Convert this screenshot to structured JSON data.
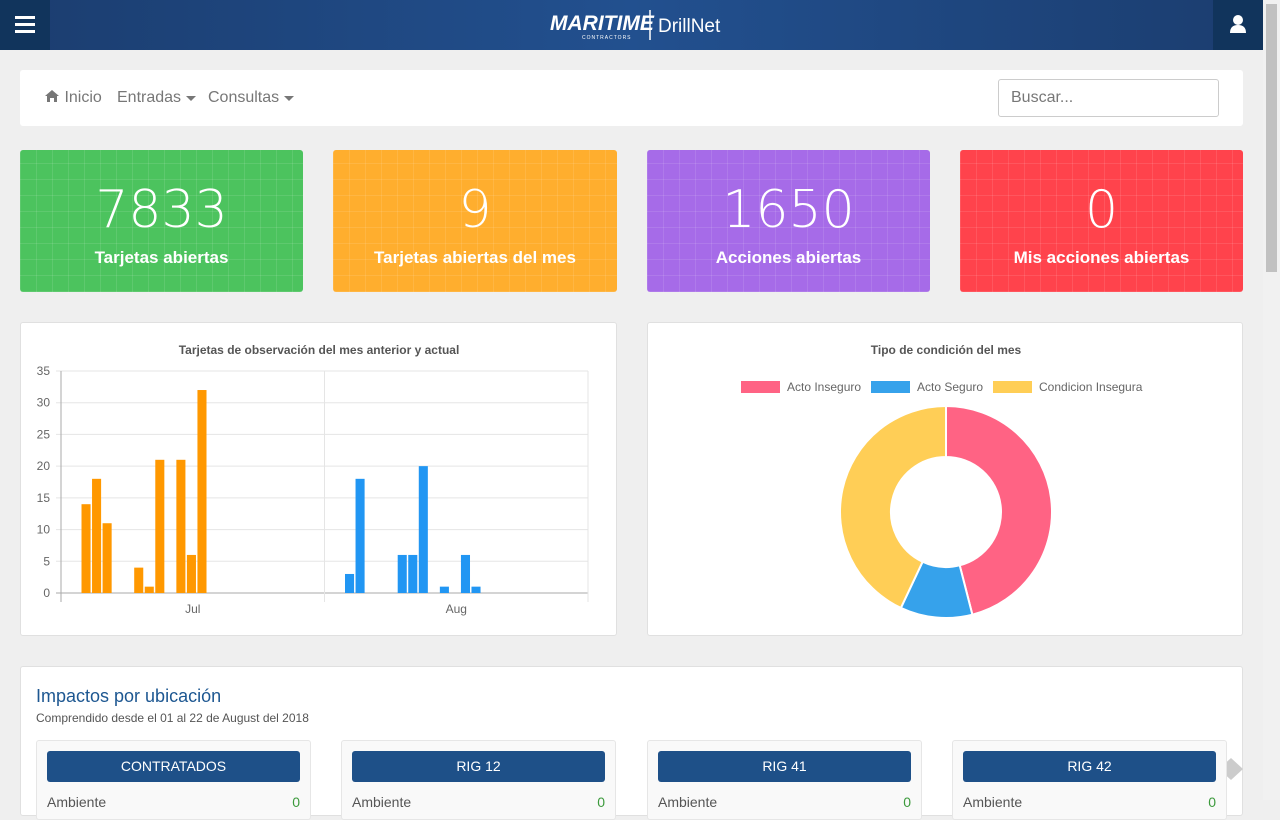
{
  "header": {
    "brand": "MARITIME",
    "brand_sub": "CONTRACTORS",
    "product": "DrillNet"
  },
  "nav": {
    "items": [
      "Inicio",
      "Entradas",
      "Consultas"
    ],
    "search_placeholder": "Buscar..."
  },
  "stats": [
    {
      "value": 7833,
      "label": "Tarjetas abiertas",
      "color": "#4cc35e"
    },
    {
      "value": 9,
      "label": "Tarjetas abiertas del mes",
      "color": "#ffae2e"
    },
    {
      "value": 1650,
      "label": "Acciones abiertas",
      "color": "#a66be8"
    },
    {
      "value": 0,
      "label": "Mis acciones abiertas",
      "color": "#ff434c"
    }
  ],
  "chart_data": [
    {
      "type": "bar",
      "title": "Tarjetas de observación del mes anterior y actual",
      "categories": [
        "Jul",
        "Aug"
      ],
      "category_colors": [
        "#ff9800",
        "#2196f3"
      ],
      "series": [
        {
          "values": [
            14,
            3
          ]
        },
        {
          "values": [
            18,
            18
          ]
        },
        {
          "values": [
            11,
            0
          ]
        },
        {
          "values": [
            0,
            0
          ]
        },
        {
          "values": [
            0,
            0
          ]
        },
        {
          "values": [
            4,
            6
          ]
        },
        {
          "values": [
            1,
            6
          ]
        },
        {
          "values": [
            21,
            20
          ]
        },
        {
          "values": [
            0,
            0
          ]
        },
        {
          "values": [
            21,
            1
          ]
        },
        {
          "values": [
            6,
            0
          ]
        },
        {
          "values": [
            32,
            6
          ]
        },
        {
          "values": [
            0,
            1
          ]
        }
      ],
      "ylim": [
        0,
        35
      ],
      "yticks": [
        0,
        5,
        10,
        15,
        20,
        25,
        30,
        35
      ],
      "grid": true
    },
    {
      "type": "doughnut",
      "title": "Tipo de condición del mes",
      "categories": [
        "Acto Inseguro",
        "Acto Seguro",
        "Condicion Insegura"
      ],
      "values": [
        46,
        11,
        43
      ],
      "colors": [
        "#ff6384",
        "#36a2eb",
        "#ffce56"
      ],
      "legend": "top"
    }
  ],
  "impacts": {
    "title": "Impactos por ubicación",
    "subtitle": "Comprendido desde el 01 al 22 de August del 2018",
    "locations": [
      {
        "name": "CONTRATADOS",
        "row_label": "Ambiente",
        "row_value": "0"
      },
      {
        "name": "RIG 12",
        "row_label": "Ambiente",
        "row_value": "0"
      },
      {
        "name": "RIG 41",
        "row_label": "Ambiente",
        "row_value": "0"
      },
      {
        "name": "RIG 42",
        "row_label": "Ambiente",
        "row_value": "0"
      }
    ]
  }
}
